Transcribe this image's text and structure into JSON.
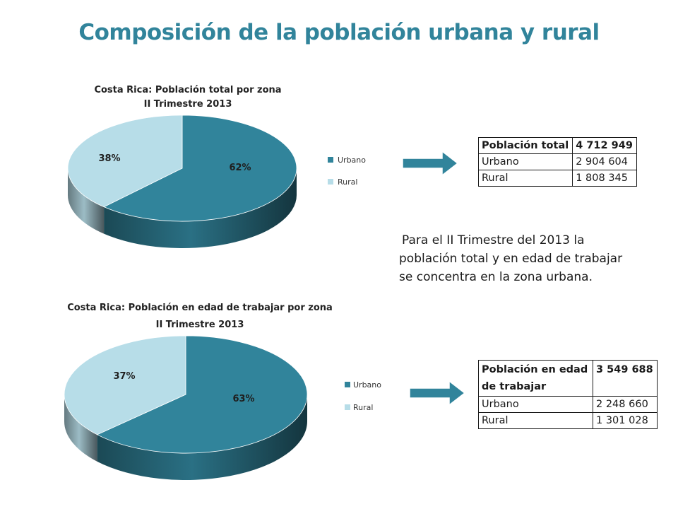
{
  "slide_title": "Composición de la población urbana y rural",
  "colors": {
    "title": "#31849b",
    "urbano": "#31849b",
    "rural": "#b7dde8",
    "arrow": "#31849b"
  },
  "chart_data": [
    {
      "type": "pie",
      "style": "3d",
      "title": "Costa Rica: Población total por zona",
      "subtitle": "II Trimestre 2013",
      "categories": [
        "Urbano",
        "Rural"
      ],
      "values": [
        62,
        38
      ],
      "labels": [
        "62%",
        "38%"
      ],
      "legend": "right"
    },
    {
      "type": "pie",
      "style": "3d",
      "title": "Costa Rica: Población en edad de trabajar por zona",
      "subtitle": "II Trimestre 2013",
      "categories": [
        "Urbano",
        "Rural"
      ],
      "values": [
        63,
        37
      ],
      "labels": [
        "63%",
        "37%"
      ],
      "legend": "right"
    }
  ],
  "tables": [
    {
      "rows": [
        [
          "Población total",
          "4 712 949"
        ],
        [
          "Urbano",
          "2 904 604"
        ],
        [
          "Rural",
          "1 808 345"
        ]
      ]
    },
    {
      "rows": [
        [
          "Población en edad de trabajar",
          "3 549 688"
        ],
        [
          "Urbano",
          "2 248 660"
        ],
        [
          "Rural",
          "1 301 028"
        ]
      ]
    }
  ],
  "summary": {
    "line1": "Para el II Trimestre del 2013 la",
    "line2": "población total y en edad de trabajar",
    "line3": "se concentra en la zona urbana."
  }
}
